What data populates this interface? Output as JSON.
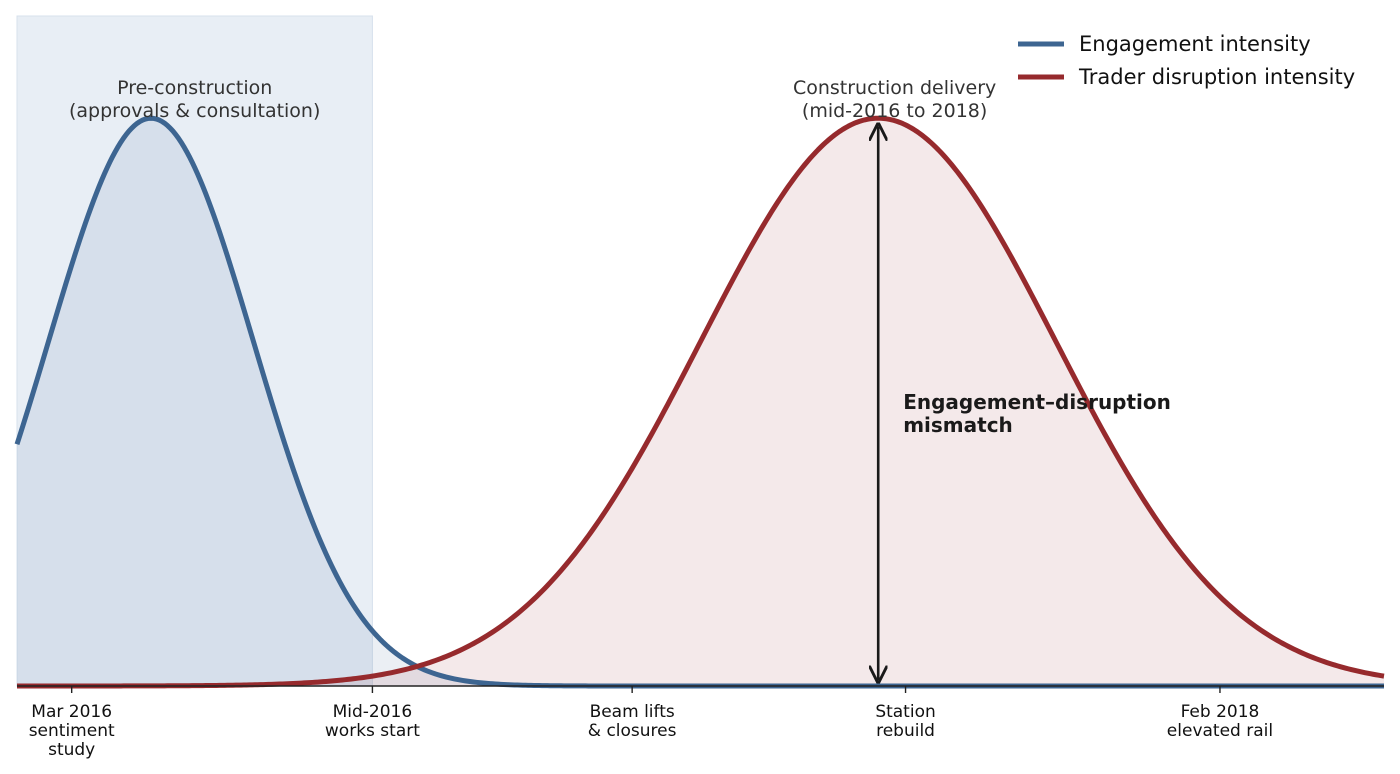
{
  "chart_data": {
    "type": "area",
    "title": "",
    "xlabel": "",
    "ylabel": "",
    "xlim": [
      0,
      100
    ],
    "ylim": [
      0,
      1.18
    ],
    "grid": false,
    "legend_position": "top-right",
    "ticks": [
      {
        "x": 4,
        "lines": [
          "Mar 2016",
          "sentiment",
          "study"
        ]
      },
      {
        "x": 26,
        "lines": [
          "Mid-2016",
          "works start"
        ]
      },
      {
        "x": 45,
        "lines": [
          "Beam lifts",
          "& closures"
        ]
      },
      {
        "x": 65,
        "lines": [
          "Station",
          "rebuild"
        ]
      },
      {
        "x": 88,
        "lines": [
          "Feb 2018",
          "elevated rail"
        ]
      }
    ],
    "series": [
      {
        "name": "Engagement intensity",
        "color": "#3d6591",
        "curve": "gaussian",
        "peak_x": 9.8,
        "peak_y": 1.0,
        "sigma": 7.5
      },
      {
        "name": "Trader disruption intensity",
        "color": "#962a2d",
        "curve": "gaussian",
        "peak_x": 63,
        "peak_y": 1.0,
        "sigma": 13
      }
    ],
    "shaded_region": {
      "x_start": 0,
      "x_end": 26,
      "color": "#e8eef5",
      "label_lines": [
        "Pre-construction",
        "(approvals & consultation)"
      ]
    },
    "phase_label": {
      "x": 64.2,
      "lines": [
        "Construction delivery",
        "(mid-2016 to 2018)"
      ]
    },
    "annotation": {
      "x": 63,
      "y_from": 0,
      "y_to": 1.0,
      "label_lines": [
        "Engagement–disruption",
        "mismatch"
      ]
    }
  }
}
